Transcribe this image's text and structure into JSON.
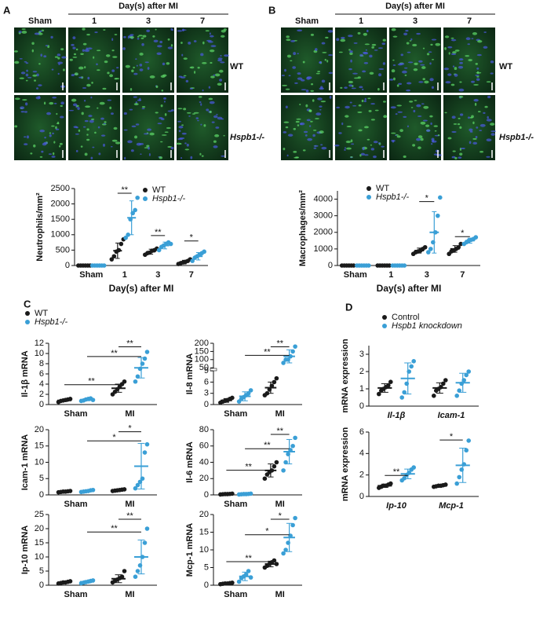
{
  "panel_labels": [
    "A",
    "B",
    "C",
    "D"
  ],
  "images": [
    {
      "header": "Day(s) after MI",
      "columns": [
        "Sham",
        "1",
        "3",
        "7"
      ],
      "rows": [
        "WT",
        "Hspb1-/-"
      ]
    },
    {
      "header": "Day(s) after MI",
      "columns": [
        "Sham",
        "1",
        "3",
        "7"
      ],
      "rows": [
        "WT",
        "Hspb1-/-"
      ]
    }
  ],
  "chart_data": [
    {
      "type": "dot",
      "ylabel": "Neutrophils/mm²",
      "xlabel": "Day(s) after MI",
      "categories": [
        "Sham",
        "1",
        "3",
        "7"
      ],
      "ylim": [
        0,
        2500
      ],
      "yticks": [
        0,
        500,
        1000,
        1500,
        2000,
        2500
      ],
      "legend": "top-right",
      "series": [
        {
          "name": "WT",
          "color": "#1a1a1a",
          "points": [
            [
              0,
              0,
              0,
              0,
              0,
              0
            ],
            [
              200,
              300,
              450,
              500,
              700,
              850
            ],
            [
              350,
              400,
              420,
              480,
              500,
              550
            ],
            [
              50,
              80,
              100,
              120,
              150,
              200
            ]
          ],
          "means": [
            0,
            480,
            450,
            110
          ],
          "sd": [
            0,
            250,
            80,
            60
          ]
        },
        {
          "name": "Hspb1-/-",
          "color": "#3a9fd6",
          "points": [
            [
              0,
              0,
              0,
              0,
              0,
              0
            ],
            [
              900,
              1000,
              1500,
              1700,
              1800,
              2200
            ],
            [
              500,
              600,
              650,
              700,
              750,
              700
            ],
            [
              150,
              250,
              300,
              350,
              400,
              450
            ]
          ],
          "means": [
            0,
            1550,
            650,
            300
          ],
          "sd": [
            0,
            550,
            110,
            120
          ]
        }
      ],
      "annotations": [
        {
          "text": "**"
        },
        {
          "text": "**"
        },
        {
          "text": "*"
        }
      ]
    },
    {
      "type": "dot",
      "ylabel": "Macrophages/mm²",
      "xlabel": "Day(s) after MI",
      "categories": [
        "Sham",
        "1",
        "3",
        "7"
      ],
      "ylim": [
        0,
        4500
      ],
      "yticks": [
        0,
        1000,
        2000,
        3000,
        4000
      ],
      "legend": "top-left",
      "series": [
        {
          "name": "WT",
          "color": "#1a1a1a",
          "points": [
            [
              0,
              0,
              0,
              0,
              0,
              0
            ],
            [
              0,
              0,
              0,
              0,
              0,
              0
            ],
            [
              700,
              800,
              850,
              900,
              1000,
              1100
            ],
            [
              700,
              850,
              900,
              1000,
              1100,
              1300
            ]
          ],
          "means": [
            0,
            0,
            900,
            1000
          ],
          "sd": [
            0,
            0,
            150,
            200
          ]
        },
        {
          "name": "Hspb1-/-",
          "color": "#3a9fd6",
          "points": [
            [
              0,
              0,
              0,
              0,
              0,
              0
            ],
            [
              0,
              0,
              0,
              0,
              0,
              0
            ],
            [
              800,
              1000,
              1400,
              2000,
              3000,
              4100
            ],
            [
              1300,
              1400,
              1500,
              1550,
              1600,
              1700
            ]
          ],
          "means": [
            0,
            0,
            2000,
            1500
          ],
          "sd": [
            0,
            0,
            1250,
            150
          ]
        }
      ],
      "annotations": [
        {
          "text": "*"
        },
        {
          "text": "*"
        }
      ]
    },
    {
      "type": "dot",
      "ylabel": "Il-1β mRNA",
      "categories": [
        "Sham",
        "MI"
      ],
      "ylim": [
        0,
        12
      ],
      "yticks": [
        0,
        2,
        4,
        6,
        8,
        10,
        12
      ],
      "legend": "above",
      "series": [
        {
          "name": "WT",
          "color": "#1a1a1a",
          "points": [
            [
              0.5,
              0.7,
              0.8,
              0.9,
              1.0,
              1.1
            ],
            [
              2.0,
              2.5,
              3.0,
              3.5,
              4.0,
              4.5
            ]
          ],
          "means": [
            0.8,
            3.2
          ],
          "sd": [
            0.2,
            0.8
          ]
        },
        {
          "name": "Hspb1-/-",
          "color": "#3a9fd6",
          "points": [
            [
              0.7,
              0.8,
              1.0,
              1.1,
              1.2,
              0.9
            ],
            [
              4.5,
              5.5,
              7.0,
              8.0,
              9.0,
              10.3
            ]
          ],
          "means": [
            0.95,
            7.2
          ],
          "sd": [
            0.2,
            2
          ]
        }
      ],
      "annotations": [
        {
          "text": "**"
        },
        {
          "text": "**"
        },
        {
          "text": "**"
        }
      ]
    },
    {
      "type": "dot",
      "ylabel": "Il-8 mRNA",
      "categories": [
        "Sham",
        "MI"
      ],
      "ylim": [
        0,
        200
      ],
      "ybreak": [
        9,
        50
      ],
      "yticks": [
        0,
        3,
        6,
        9,
        50,
        100,
        150,
        200
      ],
      "series": [
        {
          "color": "#1a1a1a",
          "points": [
            [
              0.5,
              0.8,
              1,
              1.2,
              1.5,
              1.8
            ],
            [
              2.5,
              3,
              4,
              5,
              6,
              7
            ]
          ],
          "means": [
            1.1,
            4.5
          ],
          "sd": [
            0.5,
            1.5
          ]
        },
        {
          "color": "#3a9fd6",
          "points": [
            [
              0.8,
              1.5,
              2,
              2.5,
              3,
              3.8
            ],
            [
              80,
              100,
              100,
              120,
              150,
              180
            ]
          ],
          "means": [
            2.2,
            120
          ],
          "sd": [
            1.2,
            40
          ]
        }
      ],
      "annotations": [
        {
          "text": "**"
        },
        {
          "text": "**"
        }
      ]
    },
    {
      "type": "dot",
      "ylabel": "Icam-1 mRNA",
      "categories": [
        "Sham",
        "MI"
      ],
      "ylim": [
        0,
        20
      ],
      "yticks": [
        0,
        5,
        10,
        15,
        20
      ],
      "series": [
        {
          "color": "#1a1a1a",
          "points": [
            [
              0.8,
              0.9,
              1,
              1,
              1.1,
              1.2
            ],
            [
              1.2,
              1.3,
              1.4,
              1.5,
              1.6,
              1.7
            ]
          ],
          "means": [
            1,
            1.45
          ],
          "sd": [
            0.15,
            0.2
          ]
        },
        {
          "color": "#3a9fd6",
          "points": [
            [
              0.9,
              1,
              1.1,
              1.2,
              1.4,
              1.5
            ],
            [
              2,
              3,
              4,
              5,
              13,
              15.5
            ]
          ],
          "means": [
            1.2,
            8.8
          ],
          "sd": [
            0.2,
            7
          ]
        }
      ],
      "annotations": [
        {
          "text": "*"
        },
        {
          "text": "*"
        }
      ]
    },
    {
      "type": "dot",
      "ylabel": "Il-6 mRNA",
      "categories": [
        "Sham",
        "MI"
      ],
      "ylim": [
        0,
        80
      ],
      "yticks": [
        0,
        20,
        40,
        60,
        80
      ],
      "series": [
        {
          "color": "#1a1a1a",
          "points": [
            [
              0.5,
              0.8,
              1,
              1,
              1.2,
              1.5
            ],
            [
              20,
              25,
              28,
              30,
              35,
              40
            ]
          ],
          "means": [
            1,
            30
          ],
          "sd": [
            0.3,
            8
          ]
        },
        {
          "color": "#3a9fd6",
          "points": [
            [
              0.5,
              0.8,
              1,
              1,
              1.2,
              1.5
            ],
            [
              30,
              40,
              50,
              55,
              60,
              70
            ]
          ],
          "means": [
            1,
            53
          ],
          "sd": [
            0.3,
            15
          ]
        }
      ],
      "annotations": [
        {
          "text": "**"
        },
        {
          "text": "**"
        },
        {
          "text": "**"
        }
      ]
    },
    {
      "type": "dot",
      "ylabel": "Ip-10 mRNA",
      "categories": [
        "Sham",
        "MI"
      ],
      "ylim": [
        0,
        25
      ],
      "yticks": [
        0,
        5,
        10,
        15,
        20,
        25
      ],
      "series": [
        {
          "color": "#1a1a1a",
          "points": [
            [
              0.6,
              0.8,
              1,
              1,
              1.2,
              1.4
            ],
            [
              1,
              1.5,
              2,
              2.5,
              3,
              5
            ]
          ],
          "means": [
            1,
            2.3
          ],
          "sd": [
            0.3,
            1.4
          ]
        },
        {
          "color": "#3a9fd6",
          "points": [
            [
              0.7,
              0.9,
              1.1,
              1.3,
              1.5,
              1.7
            ],
            [
              3,
              5,
              7,
              10,
              15,
              20
            ]
          ],
          "means": [
            1.2,
            10
          ],
          "sd": [
            0.4,
            6
          ]
        }
      ],
      "annotations": [
        {
          "text": "**"
        },
        {
          "text": "**"
        }
      ]
    },
    {
      "type": "dot",
      "ylabel": "Mcp-1 mRNA",
      "categories": [
        "Sham",
        "MI"
      ],
      "ylim": [
        0,
        20
      ],
      "yticks": [
        0,
        5,
        10,
        15,
        20
      ],
      "series": [
        {
          "color": "#1a1a1a",
          "points": [
            [
              0.3,
              0.4,
              0.5,
              0.5,
              0.6,
              0.7
            ],
            [
              5,
              5.5,
              6,
              6.5,
              7,
              6
            ]
          ],
          "means": [
            0.5,
            6
          ],
          "sd": [
            0.2,
            0.8
          ]
        },
        {
          "color": "#3a9fd6",
          "points": [
            [
              1,
              2,
              2.5,
              3,
              4,
              2.2
            ],
            [
              9,
              10,
              12,
              14,
              17,
              19
            ]
          ],
          "means": [
            2.5,
            13.5
          ],
          "sd": [
            1.2,
            4
          ]
        }
      ],
      "annotations": [
        {
          "text": "**"
        },
        {
          "text": "*"
        },
        {
          "text": "*"
        }
      ]
    },
    {
      "type": "dot",
      "ylabel": "mRNA expression",
      "categories": [
        "Il-1β",
        "Icam-1"
      ],
      "ylim": [
        0,
        3.5
      ],
      "yticks": [
        0,
        1,
        2,
        3
      ],
      "legend": "above",
      "series": [
        {
          "name": "Control",
          "color": "#1a1a1a",
          "points": [
            [
              0.7,
              0.9,
              1.0,
              1.1,
              1.2,
              1.4
            ],
            [
              0.6,
              0.9,
              1.0,
              1.1,
              1.3,
              1.5
            ]
          ],
          "means": [
            1.05,
            1.05
          ],
          "sd": [
            0.25,
            0.3
          ]
        },
        {
          "name": "Hspb1 knockdown",
          "color": "#3a9fd6",
          "points": [
            [
              0.5,
              0.8,
              1.3,
              2.0,
              2.3,
              2.6
            ],
            [
              0.6,
              0.9,
              1.3,
              1.5,
              1.8,
              2.0
            ]
          ],
          "means": [
            1.6,
            1.35
          ],
          "sd": [
            0.9,
            0.55
          ]
        }
      ],
      "annotations": []
    },
    {
      "type": "dot",
      "ylabel": "mRNA expression",
      "categories": [
        "Ip-10",
        "Mcp-1"
      ],
      "ylim": [
        0,
        6
      ],
      "yticks": [
        0,
        2,
        4,
        6
      ],
      "series": [
        {
          "color": "#1a1a1a",
          "points": [
            [
              0.8,
              0.9,
              1,
              1,
              1.1,
              1.2
            ],
            [
              0.9,
              0.95,
              1,
              1,
              1.05,
              1.1
            ]
          ],
          "means": [
            1,
            1
          ],
          "sd": [
            0.15,
            0.1
          ]
        },
        {
          "color": "#3a9fd6",
          "points": [
            [
              1.5,
              1.7,
              2,
              2.2,
              2.5,
              2.7
            ],
            [
              1.2,
              1.8,
              2.5,
              3,
              4.3,
              5.2
            ]
          ],
          "means": [
            2.1,
            2.9
          ],
          "sd": [
            0.45,
            1.6
          ]
        }
      ],
      "annotations": [
        {
          "text": "**"
        },
        {
          "text": "*"
        }
      ]
    }
  ]
}
